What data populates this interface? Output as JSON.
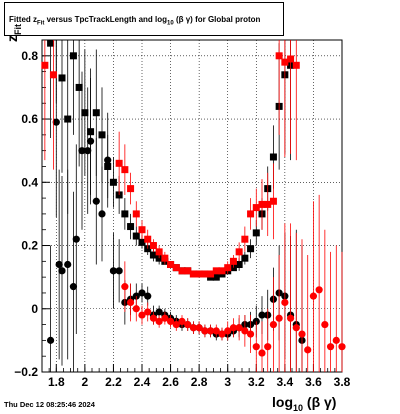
{
  "title": {
    "part1": "Fitted  z",
    "part1_sub": "Fit",
    "part2": "  versus TpcTrackLength and log",
    "part2_sub": "10",
    "part3": " (β  γ) for Global proton"
  },
  "footer": "Thu Dec 12 08:25:46 2024",
  "x_title": {
    "main": "log",
    "sub": "10",
    "rest": " (β γ)"
  },
  "y_title": {
    "main": "z",
    "sub": "Fit"
  },
  "chart_data": {
    "type": "scatter",
    "xlim": [
      1.7,
      3.8
    ],
    "ylim": [
      -0.2,
      0.85
    ],
    "xticks": [
      "1.8",
      "2",
      "2.2",
      "2.4",
      "2.6",
      "2.8",
      "3",
      "3.2",
      "3.4",
      "3.6",
      "3.8"
    ],
    "yticks": [
      "−0.2",
      "0",
      "0.2",
      "0.4",
      "0.6",
      "0.8"
    ],
    "grid": true,
    "series": [
      {
        "marker": "square",
        "color": "#000000",
        "points": [
          [
            1.76,
            0.84,
            0.3
          ],
          [
            1.8,
            0.95,
            0.3
          ],
          [
            1.84,
            0.73,
            0.3
          ],
          [
            1.88,
            0.6,
            0.3
          ],
          [
            1.92,
            0.8,
            0.25
          ],
          [
            1.96,
            0.7,
            0.25
          ],
          [
            2.0,
            0.62,
            0.2
          ],
          [
            2.04,
            0.56,
            0.2
          ],
          [
            2.08,
            0.62,
            0.2
          ],
          [
            2.12,
            0.55,
            0.15
          ],
          [
            2.16,
            0.45,
            0.1
          ],
          [
            2.2,
            0.4,
            0.08
          ],
          [
            2.24,
            0.36,
            0.06
          ],
          [
            2.28,
            0.3,
            0.05
          ],
          [
            2.32,
            0.26,
            0.04
          ],
          [
            2.36,
            0.23,
            0.03
          ],
          [
            2.4,
            0.21,
            0.02
          ],
          [
            2.44,
            0.19,
            0.02
          ],
          [
            2.48,
            0.17,
            0.02
          ],
          [
            2.52,
            0.16,
            0.02
          ],
          [
            2.56,
            0.15,
            0.01
          ],
          [
            2.6,
            0.14,
            0.01
          ],
          [
            2.64,
            0.13,
            0.01
          ],
          [
            2.68,
            0.12,
            0.01
          ],
          [
            2.72,
            0.12,
            0.01
          ],
          [
            2.76,
            0.11,
            0.01
          ],
          [
            2.8,
            0.11,
            0.01
          ],
          [
            2.84,
            0.11,
            0.01
          ],
          [
            2.88,
            0.1,
            0.01
          ],
          [
            2.92,
            0.1,
            0.01
          ],
          [
            2.96,
            0.11,
            0.01
          ],
          [
            3.0,
            0.12,
            0.01
          ],
          [
            3.04,
            0.13,
            0.01
          ],
          [
            3.08,
            0.14,
            0.02
          ],
          [
            3.12,
            0.16,
            0.02
          ],
          [
            3.16,
            0.19,
            0.03
          ],
          [
            3.2,
            0.24,
            0.04
          ],
          [
            3.24,
            0.3,
            0.05
          ],
          [
            3.28,
            0.38,
            0.07
          ],
          [
            3.32,
            0.48,
            0.1
          ],
          [
            3.36,
            0.64,
            0.2
          ],
          [
            3.4,
            0.74,
            0.25
          ],
          [
            3.44,
            0.77,
            0.3
          ]
        ]
      },
      {
        "marker": "circle",
        "color": "#000000",
        "points": [
          [
            1.76,
            -0.1,
            0.3
          ],
          [
            1.8,
            0.59,
            0.3
          ],
          [
            1.82,
            0.14,
            0.3
          ],
          [
            1.84,
            0.12,
            0.3
          ],
          [
            1.88,
            0.14,
            0.3
          ],
          [
            1.92,
            0.07,
            0.3
          ],
          [
            1.94,
            0.22,
            0.3
          ],
          [
            1.98,
            0.5,
            0.25
          ],
          [
            2.02,
            0.5,
            0.2
          ],
          [
            2.04,
            0.53,
            0.2
          ],
          [
            2.08,
            0.34,
            0.2
          ],
          [
            2.12,
            0.3,
            0.15
          ],
          [
            2.16,
            0.47,
            0.15
          ],
          [
            2.2,
            0.12,
            0.12
          ],
          [
            2.24,
            0.12,
            0.1
          ],
          [
            2.28,
            0.02,
            0.07
          ],
          [
            2.32,
            0.03,
            0.05
          ],
          [
            2.36,
            0.04,
            0.04
          ],
          [
            2.4,
            0.05,
            0.03
          ],
          [
            2.44,
            0.04,
            0.03
          ],
          [
            2.48,
            -0.02,
            0.03
          ],
          [
            2.52,
            -0.01,
            0.02
          ],
          [
            2.56,
            -0.02,
            0.02
          ],
          [
            2.6,
            -0.03,
            0.02
          ],
          [
            2.64,
            -0.04,
            0.02
          ],
          [
            2.68,
            -0.05,
            0.02
          ],
          [
            2.72,
            -0.05,
            0.02
          ],
          [
            2.76,
            -0.06,
            0.02
          ],
          [
            2.8,
            -0.06,
            0.02
          ],
          [
            2.84,
            -0.07,
            0.02
          ],
          [
            2.88,
            -0.07,
            0.02
          ],
          [
            2.92,
            -0.08,
            0.02
          ],
          [
            2.96,
            -0.08,
            0.02
          ],
          [
            3.0,
            -0.08,
            0.02
          ],
          [
            3.04,
            -0.07,
            0.02
          ],
          [
            3.08,
            -0.06,
            0.03
          ],
          [
            3.12,
            -0.05,
            0.03
          ],
          [
            3.16,
            -0.05,
            0.04
          ],
          [
            3.2,
            -0.04,
            0.05
          ],
          [
            3.24,
            -0.02,
            0.06
          ],
          [
            3.28,
            -0.02,
            0.08
          ],
          [
            3.32,
            0.03,
            0.1
          ],
          [
            3.36,
            0.05,
            0.15
          ],
          [
            3.4,
            0.04,
            0.2
          ],
          [
            3.44,
            -0.02,
            0.25
          ],
          [
            3.48,
            -0.05,
            0.3
          ],
          [
            3.52,
            -0.1,
            0.3
          ]
        ]
      },
      {
        "marker": "square",
        "color": "#ff0000",
        "points": [
          [
            1.72,
            0.77,
            0.3
          ],
          [
            1.78,
            0.74,
            0.3
          ],
          [
            2.24,
            0.46,
            0.1
          ],
          [
            2.28,
            0.44,
            0.08
          ],
          [
            2.32,
            0.38,
            0.05
          ],
          [
            2.36,
            0.3,
            0.04
          ],
          [
            2.4,
            0.25,
            0.03
          ],
          [
            2.44,
            0.22,
            0.03
          ],
          [
            2.48,
            0.2,
            0.02
          ],
          [
            2.52,
            0.18,
            0.02
          ],
          [
            2.56,
            0.16,
            0.02
          ],
          [
            2.6,
            0.14,
            0.01
          ],
          [
            2.64,
            0.13,
            0.01
          ],
          [
            2.68,
            0.12,
            0.01
          ],
          [
            2.72,
            0.12,
            0.01
          ],
          [
            2.76,
            0.11,
            0.01
          ],
          [
            2.8,
            0.11,
            0.01
          ],
          [
            2.84,
            0.11,
            0.01
          ],
          [
            2.88,
            0.11,
            0.01
          ],
          [
            2.92,
            0.12,
            0.01
          ],
          [
            2.96,
            0.12,
            0.01
          ],
          [
            3.0,
            0.13,
            0.02
          ],
          [
            3.04,
            0.15,
            0.02
          ],
          [
            3.08,
            0.18,
            0.03
          ],
          [
            3.12,
            0.22,
            0.04
          ],
          [
            3.16,
            0.3,
            0.05
          ],
          [
            3.2,
            0.32,
            0.06
          ],
          [
            3.24,
            0.33,
            0.08
          ],
          [
            3.28,
            0.33,
            0.1
          ],
          [
            3.32,
            0.34,
            0.12
          ],
          [
            3.36,
            0.8,
            0.25
          ],
          [
            3.4,
            0.78,
            0.3
          ],
          [
            3.44,
            0.79,
            0.3
          ],
          [
            3.48,
            0.77,
            0.3
          ]
        ]
      },
      {
        "marker": "circle",
        "color": "#ff0000",
        "points": [
          [
            2.28,
            0.07,
            0.08
          ],
          [
            2.32,
            0.02,
            0.06
          ],
          [
            2.36,
            0.0,
            0.04
          ],
          [
            2.4,
            -0.02,
            0.03
          ],
          [
            2.44,
            -0.01,
            0.03
          ],
          [
            2.48,
            -0.03,
            0.02
          ],
          [
            2.52,
            -0.04,
            0.02
          ],
          [
            2.56,
            -0.03,
            0.02
          ],
          [
            2.6,
            -0.04,
            0.02
          ],
          [
            2.64,
            -0.05,
            0.02
          ],
          [
            2.68,
            -0.04,
            0.02
          ],
          [
            2.72,
            -0.05,
            0.02
          ],
          [
            2.76,
            -0.06,
            0.02
          ],
          [
            2.8,
            -0.06,
            0.02
          ],
          [
            2.84,
            -0.07,
            0.02
          ],
          [
            2.88,
            -0.07,
            0.02
          ],
          [
            2.92,
            -0.07,
            0.02
          ],
          [
            2.96,
            -0.08,
            0.02
          ],
          [
            3.0,
            -0.07,
            0.03
          ],
          [
            3.04,
            -0.06,
            0.03
          ],
          [
            3.08,
            -0.06,
            0.04
          ],
          [
            3.12,
            -0.07,
            0.05
          ],
          [
            3.16,
            -0.08,
            0.06
          ],
          [
            3.2,
            -0.12,
            0.08
          ],
          [
            3.24,
            -0.14,
            0.1
          ],
          [
            3.28,
            -0.12,
            0.12
          ],
          [
            3.32,
            -0.05,
            0.15
          ],
          [
            3.36,
            -0.03,
            0.2
          ],
          [
            3.4,
            0.02,
            0.25
          ],
          [
            3.44,
            -0.03,
            0.3
          ],
          [
            3.48,
            -0.06,
            0.3
          ],
          [
            3.52,
            -0.08,
            0.3
          ],
          [
            3.56,
            -0.13,
            0.3
          ],
          [
            3.6,
            0.04,
            0.3
          ],
          [
            3.64,
            0.06,
            0.3
          ],
          [
            3.68,
            -0.05,
            0.3
          ],
          [
            3.72,
            -0.12,
            0.3
          ],
          [
            3.76,
            -0.1,
            0.3
          ],
          [
            3.8,
            -0.12,
            0.3
          ]
        ]
      }
    ]
  }
}
